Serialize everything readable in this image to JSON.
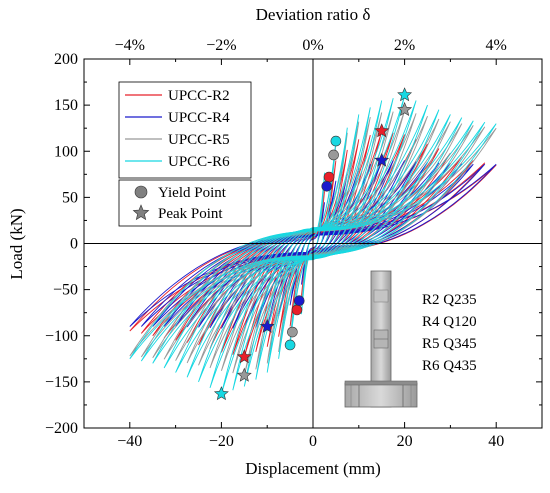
{
  "chart_data": {
    "type": "line",
    "xlabel": "Displacement (mm)",
    "ylabel": "Load (kN)",
    "top_axis_label": "Deviation ratio δ",
    "xlim": [
      -50,
      50
    ],
    "ylim": [
      -200,
      200
    ],
    "x_ticks": [
      -40,
      -20,
      0,
      20,
      40
    ],
    "y_ticks": [
      -200,
      -150,
      -100,
      -50,
      0,
      50,
      100,
      150,
      200
    ],
    "top_ticks": [
      -4,
      -2,
      0,
      2,
      4
    ],
    "top_tick_labels": [
      "−4%",
      "−2%",
      "0%",
      "2%",
      "4%"
    ],
    "x_tick_labels": [
      "−40",
      "−20",
      "0",
      "20",
      "40"
    ],
    "y_tick_labels": [
      "−200",
      "−150",
      "−100",
      "−50",
      "0",
      "50",
      "100",
      "150",
      "200"
    ],
    "grid": false,
    "zero_lines": true,
    "legend_position": "top-left",
    "series": [
      {
        "name": "UPCC-R2",
        "color": "#e8202a",
        "envelope_pos": [
          [
            0,
            0
          ],
          [
            2,
            50
          ],
          [
            5,
            90
          ],
          [
            10,
            113
          ],
          [
            15,
            122
          ],
          [
            20,
            118
          ],
          [
            25,
            108
          ],
          [
            30,
            98
          ],
          [
            35,
            90
          ],
          [
            40,
            85
          ]
        ],
        "envelope_neg": [
          [
            0,
            0
          ],
          [
            -2,
            -50
          ],
          [
            -5,
            -90
          ],
          [
            -10,
            -112
          ],
          [
            -15,
            -123
          ],
          [
            -20,
            -118
          ],
          [
            -25,
            -110
          ],
          [
            -30,
            -105
          ],
          [
            -35,
            -100
          ],
          [
            -40,
            -95
          ]
        ],
        "yield_point": [
          [
            3.5,
            72
          ],
          [
            -3.5,
            -72
          ]
        ],
        "peak_point": [
          [
            15,
            122
          ],
          [
            -15,
            -123
          ]
        ]
      },
      {
        "name": "UPCC-R4",
        "color": "#1a1acc",
        "envelope_pos": [
          [
            0,
            0
          ],
          [
            2,
            40
          ],
          [
            5,
            68
          ],
          [
            10,
            82
          ],
          [
            15,
            90
          ],
          [
            20,
            90
          ],
          [
            25,
            88
          ],
          [
            30,
            87
          ],
          [
            35,
            86
          ],
          [
            40,
            86
          ]
        ],
        "envelope_neg": [
          [
            0,
            0
          ],
          [
            -2,
            -40
          ],
          [
            -5,
            -67
          ],
          [
            -10,
            -90
          ],
          [
            -15,
            -92
          ],
          [
            -20,
            -92
          ],
          [
            -25,
            -91
          ],
          [
            -30,
            -90
          ],
          [
            -35,
            -90
          ],
          [
            -40,
            -90
          ]
        ],
        "yield_point": [
          [
            3,
            62
          ],
          [
            -3,
            -62
          ]
        ],
        "peak_point": [
          [
            15,
            90
          ],
          [
            -10,
            -90
          ]
        ]
      },
      {
        "name": "UPCC-R5",
        "color": "#999999",
        "envelope_pos": [
          [
            0,
            0
          ],
          [
            2,
            60
          ],
          [
            5,
            108
          ],
          [
            10,
            132
          ],
          [
            15,
            142
          ],
          [
            20,
            144
          ],
          [
            25,
            138
          ],
          [
            30,
            132
          ],
          [
            35,
            128
          ],
          [
            40,
            125
          ]
        ],
        "envelope_neg": [
          [
            0,
            0
          ],
          [
            -2,
            -60
          ],
          [
            -5,
            -105
          ],
          [
            -10,
            -130
          ],
          [
            -15,
            -143
          ],
          [
            -20,
            -138
          ],
          [
            -25,
            -132
          ],
          [
            -30,
            -127
          ],
          [
            -35,
            -124
          ],
          [
            -40,
            -122
          ]
        ],
        "yield_point": [
          [
            4.5,
            96
          ],
          [
            -4.5,
            -96
          ]
        ],
        "peak_point": [
          [
            20,
            145
          ],
          [
            -15,
            -143
          ]
        ]
      },
      {
        "name": "UPCC-R6",
        "color": "#18d8e2",
        "envelope_pos": [
          [
            0,
            0
          ],
          [
            2,
            70
          ],
          [
            5,
            111
          ],
          [
            10,
            140
          ],
          [
            15,
            155
          ],
          [
            20,
            160
          ],
          [
            25,
            150
          ],
          [
            30,
            140
          ],
          [
            35,
            133
          ],
          [
            40,
            130
          ]
        ],
        "envelope_neg": [
          [
            0,
            0
          ],
          [
            -2,
            -70
          ],
          [
            -5,
            -110
          ],
          [
            -10,
            -140
          ],
          [
            -15,
            -155
          ],
          [
            -20,
            -163
          ],
          [
            -25,
            -150
          ],
          [
            -30,
            -140
          ],
          [
            -35,
            -130
          ],
          [
            -40,
            -125
          ]
        ],
        "yield_point": [
          [
            5,
            111
          ],
          [
            -5,
            -110
          ]
        ],
        "peak_point": [
          [
            20,
            161
          ],
          [
            -20,
            -163
          ]
        ]
      }
    ],
    "marker_legend": [
      {
        "name": "Yield Point",
        "shape": "circle"
      },
      {
        "name": "Peak Point",
        "shape": "star"
      }
    ],
    "inset_labels": [
      "R2 Q235",
      "R4 Q120",
      "R5 Q345",
      "R6 Q435"
    ]
  }
}
